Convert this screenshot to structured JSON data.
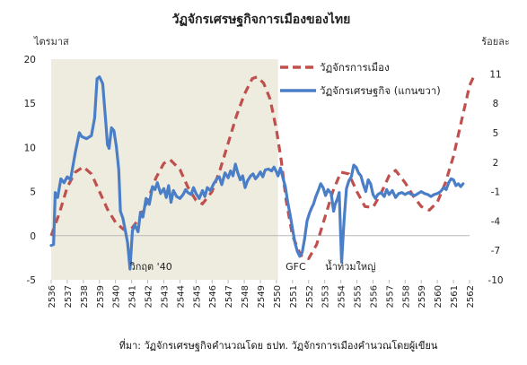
{
  "chart_data": {
    "type": "line",
    "title": "วัฏจักรเศรษฐกิจการเมืองของไทย",
    "ylabel_left": "ไตรมาส",
    "ylabel_right": "ร้อยละ",
    "ylim_left": [
      -5,
      20
    ],
    "yticks_left": [
      -5,
      0,
      5,
      10,
      15,
      20
    ],
    "ylim_right": [
      -10,
      12.5
    ],
    "yticks_right": [
      -10,
      -7,
      -4,
      -1,
      2,
      5,
      8,
      11
    ],
    "xlim": [
      2536,
      2562
    ],
    "xticks": [
      "2536",
      "2537",
      "2538",
      "2539",
      "2540",
      "2541",
      "2542",
      "2543",
      "2544",
      "2545",
      "2546",
      "2547",
      "2548",
      "2549",
      "2550",
      "2551",
      "2552",
      "2553",
      "2554",
      "2555",
      "2556",
      "2557",
      "2558",
      "2559",
      "2560",
      "2561",
      "2562"
    ],
    "shaded_region": {
      "from": 2536,
      "to": 2550.1,
      "color": "#eeecdf"
    },
    "legend_position": "top-right",
    "series": [
      {
        "name": "วัฏจักรการเมือง",
        "axis": "left",
        "style": "dashed",
        "color": "#c0504d",
        "points": [
          [
            2536,
            0
          ],
          [
            2536.5,
            2.5
          ],
          [
            2537,
            5.5
          ],
          [
            2537.5,
            7.2
          ],
          [
            2538,
            7.8
          ],
          [
            2538.5,
            7
          ],
          [
            2539,
            5
          ],
          [
            2539.5,
            3
          ],
          [
            2540,
            1.5
          ],
          [
            2540.5,
            0.7
          ],
          [
            2541,
            0.8
          ],
          [
            2541.5,
            2
          ],
          [
            2542,
            4
          ],
          [
            2542.5,
            6.5
          ],
          [
            2543,
            8.2
          ],
          [
            2543.4,
            8.6
          ],
          [
            2544,
            7.5
          ],
          [
            2544.5,
            5.5
          ],
          [
            2545,
            4
          ],
          [
            2545.4,
            3.6
          ],
          [
            2546,
            5
          ],
          [
            2546.5,
            7.5
          ],
          [
            2547,
            10.5
          ],
          [
            2547.5,
            13.5
          ],
          [
            2548,
            16
          ],
          [
            2548.5,
            17.8
          ],
          [
            2548.8,
            18
          ],
          [
            2549.2,
            17.3
          ],
          [
            2549.6,
            15.5
          ],
          [
            2550,
            12
          ],
          [
            2550.3,
            8.5
          ],
          [
            2550.6,
            4
          ],
          [
            2551,
            0
          ],
          [
            2551.5,
            -2.2
          ],
          [
            2552,
            -2.6
          ],
          [
            2552.5,
            -1
          ],
          [
            2553,
            2
          ],
          [
            2553.5,
            5
          ],
          [
            2554,
            7.2
          ],
          [
            2554.5,
            7
          ],
          [
            2555,
            5
          ],
          [
            2555.5,
            3.3
          ],
          [
            2556,
            3.2
          ],
          [
            2556.5,
            4.8
          ],
          [
            2557,
            6.8
          ],
          [
            2557.4,
            7.4
          ],
          [
            2558,
            6
          ],
          [
            2558.5,
            4.5
          ],
          [
            2559,
            3.3
          ],
          [
            2559.5,
            2.9
          ],
          [
            2560,
            3.8
          ],
          [
            2560.5,
            6
          ],
          [
            2561,
            9
          ],
          [
            2561.5,
            13
          ],
          [
            2562,
            17
          ],
          [
            2562.3,
            18.2
          ]
        ]
      },
      {
        "name": "วัฏจักรเศรษฐกิจ (แกนขวา)",
        "axis": "right",
        "style": "solid",
        "color": "#4a7ec6",
        "points": [
          [
            2536,
            -6.5
          ],
          [
            2536.15,
            -6.4
          ],
          [
            2536.25,
            -1.1
          ],
          [
            2536.4,
            -1.6
          ],
          [
            2536.6,
            0.3
          ],
          [
            2536.8,
            -0.1
          ],
          [
            2537,
            0.5
          ],
          [
            2537.2,
            0.2
          ],
          [
            2537.5,
            3
          ],
          [
            2537.75,
            5
          ],
          [
            2537.9,
            4.6
          ],
          [
            2538.2,
            4.4
          ],
          [
            2538.5,
            4.7
          ],
          [
            2538.7,
            6.5
          ],
          [
            2538.85,
            10.5
          ],
          [
            2539,
            10.7
          ],
          [
            2539.2,
            10
          ],
          [
            2539.4,
            6
          ],
          [
            2539.5,
            3.8
          ],
          [
            2539.6,
            3.4
          ],
          [
            2539.75,
            5.5
          ],
          [
            2539.9,
            5.2
          ],
          [
            2540.05,
            3.6
          ],
          [
            2540.2,
            1.2
          ],
          [
            2540.3,
            -3
          ],
          [
            2540.45,
            -3.7
          ],
          [
            2540.6,
            -4.9
          ],
          [
            2540.75,
            -6.2
          ],
          [
            2540.9,
            -8.9
          ],
          [
            2541.05,
            -5
          ],
          [
            2541.2,
            -4.4
          ],
          [
            2541.4,
            -5.1
          ],
          [
            2541.55,
            -3.1
          ],
          [
            2541.7,
            -3.6
          ],
          [
            2541.9,
            -1.7
          ],
          [
            2542.1,
            -2.3
          ],
          [
            2542.3,
            -0.5
          ],
          [
            2542.45,
            -0.8
          ],
          [
            2542.6,
            -0.1
          ],
          [
            2542.8,
            -1.2
          ],
          [
            2543,
            -0.7
          ],
          [
            2543.15,
            -1.6
          ],
          [
            2543.3,
            -0.4
          ],
          [
            2543.45,
            -2.1
          ],
          [
            2543.6,
            -0.9
          ],
          [
            2543.8,
            -1.5
          ],
          [
            2544,
            -1.7
          ],
          [
            2544.2,
            -1.3
          ],
          [
            2544.35,
            -0.8
          ],
          [
            2544.5,
            -1.1
          ],
          [
            2544.7,
            -1.3
          ],
          [
            2544.85,
            -0.6
          ],
          [
            2545,
            -1.2
          ],
          [
            2545.2,
            -1.7
          ],
          [
            2545.4,
            -0.9
          ],
          [
            2545.55,
            -1.5
          ],
          [
            2545.7,
            -0.6
          ],
          [
            2545.9,
            -0.9
          ],
          [
            2546.1,
            -0.2
          ],
          [
            2546.3,
            0.3
          ],
          [
            2546.45,
            0.5
          ],
          [
            2546.6,
            -0.3
          ],
          [
            2546.8,
            0.9
          ],
          [
            2547,
            0.4
          ],
          [
            2547.15,
            1.1
          ],
          [
            2547.3,
            0.6
          ],
          [
            2547.45,
            1.8
          ],
          [
            2547.6,
            0.9
          ],
          [
            2547.75,
            0.2
          ],
          [
            2547.9,
            0.6
          ],
          [
            2548.05,
            -0.6
          ],
          [
            2548.2,
            0.1
          ],
          [
            2548.4,
            0.6
          ],
          [
            2548.55,
            0.8
          ],
          [
            2548.7,
            0.3
          ],
          [
            2548.85,
            0.6
          ],
          [
            2549,
            1
          ],
          [
            2549.15,
            0.5
          ],
          [
            2549.3,
            1.2
          ],
          [
            2549.5,
            1.3
          ],
          [
            2549.7,
            1.1
          ],
          [
            2549.85,
            1.5
          ],
          [
            2550,
            1
          ],
          [
            2550.1,
            0.6
          ],
          [
            2550.25,
            1.4
          ],
          [
            2550.4,
            0.4
          ],
          [
            2550.55,
            -0.5
          ],
          [
            2550.7,
            -2.1
          ],
          [
            2550.85,
            -3.4
          ],
          [
            2551,
            -4.8
          ],
          [
            2551.15,
            -6.2
          ],
          [
            2551.3,
            -7.1
          ],
          [
            2551.45,
            -7.6
          ],
          [
            2551.6,
            -7.2
          ],
          [
            2551.75,
            -5.8
          ],
          [
            2551.9,
            -4
          ],
          [
            2552.05,
            -3.2
          ],
          [
            2552.2,
            -2.6
          ],
          [
            2552.3,
            -2.3
          ],
          [
            2552.45,
            -1.5
          ],
          [
            2552.6,
            -0.9
          ],
          [
            2552.75,
            -0.2
          ],
          [
            2552.9,
            -0.6
          ],
          [
            2553.05,
            -1.4
          ],
          [
            2553.2,
            -0.8
          ],
          [
            2553.4,
            -1.2
          ],
          [
            2553.55,
            -3
          ],
          [
            2553.65,
            -2.3
          ],
          [
            2553.8,
            -1.7
          ],
          [
            2553.9,
            -1.1
          ],
          [
            2554.05,
            -8.2
          ],
          [
            2554.2,
            -4
          ],
          [
            2554.35,
            -0.7
          ],
          [
            2554.5,
            0.1
          ],
          [
            2554.65,
            0.5
          ],
          [
            2554.8,
            1.7
          ],
          [
            2554.95,
            1.5
          ],
          [
            2555.1,
            0.9
          ],
          [
            2555.25,
            0.6
          ],
          [
            2555.4,
            -0.3
          ],
          [
            2555.55,
            -1
          ],
          [
            2555.7,
            0.2
          ],
          [
            2555.85,
            -0.2
          ],
          [
            2556,
            -1.3
          ],
          [
            2556.15,
            -1.7
          ],
          [
            2556.3,
            -1.3
          ],
          [
            2556.5,
            -1.1
          ],
          [
            2556.7,
            -1.5
          ],
          [
            2556.85,
            -0.8
          ],
          [
            2557,
            -1.3
          ],
          [
            2557.2,
            -0.9
          ],
          [
            2557.4,
            -1.6
          ],
          [
            2557.6,
            -1.2
          ],
          [
            2557.8,
            -1.1
          ],
          [
            2558,
            -1.3
          ],
          [
            2558.2,
            -1.1
          ],
          [
            2558.4,
            -1.3
          ],
          [
            2558.6,
            -1.4
          ],
          [
            2558.8,
            -1.2
          ],
          [
            2559,
            -1
          ],
          [
            2559.2,
            -1.2
          ],
          [
            2559.4,
            -1.3
          ],
          [
            2559.6,
            -1.5
          ],
          [
            2559.8,
            -1.3
          ],
          [
            2560,
            -1.2
          ],
          [
            2560.2,
            -1
          ],
          [
            2560.4,
            -0.6
          ],
          [
            2560.55,
            -0.8
          ],
          [
            2560.7,
            -0.1
          ],
          [
            2560.85,
            0.3
          ],
          [
            2561,
            0.2
          ],
          [
            2561.15,
            -0.4
          ],
          [
            2561.3,
            -0.2
          ],
          [
            2561.45,
            -0.5
          ],
          [
            2561.6,
            -0.2
          ]
        ]
      }
    ],
    "annotations": [
      {
        "text": "วิกฤต '40",
        "x": 2542.2,
        "y": -3.5
      },
      {
        "text": "GFC",
        "x": 2551.2,
        "y": -3.5
      },
      {
        "text": "น้ำท่วมใหญ่",
        "x": 2554.6,
        "y": -3.5
      }
    ],
    "source_note": "ที่มา: วัฏจักรเศรษฐกิจคำนวณโดย ธปท.  วัฏจักรการเมืองคำนวณโดยผู้เขียน"
  }
}
